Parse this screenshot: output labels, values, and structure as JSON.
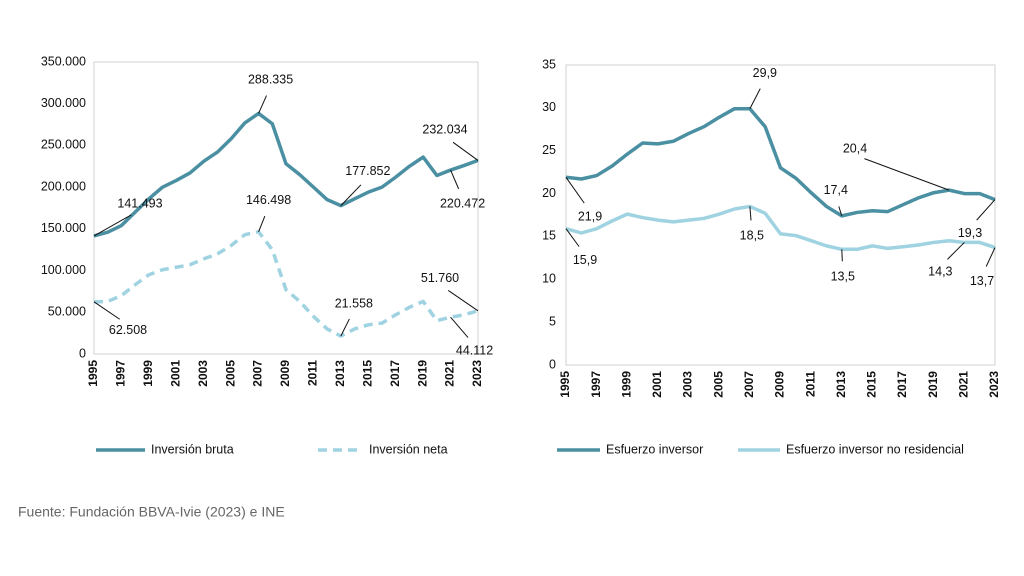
{
  "chart_data": [
    {
      "type": "line",
      "x": [
        1995,
        1996,
        1997,
        1998,
        1999,
        2000,
        2001,
        2002,
        2003,
        2004,
        2005,
        2006,
        2007,
        2008,
        2009,
        2010,
        2011,
        2012,
        2013,
        2014,
        2015,
        2016,
        2017,
        2018,
        2019,
        2020,
        2021,
        2022,
        2023
      ],
      "xlim": [
        1995,
        2023
      ],
      "xticks": [
        1995,
        1997,
        1999,
        2001,
        2003,
        2005,
        2007,
        2009,
        2011,
        2013,
        2015,
        2017,
        2019,
        2021,
        2023
      ],
      "ylim": [
        0,
        350000
      ],
      "yticks": [
        0,
        {
          "value": 50000,
          "label": "50.000"
        },
        {
          "value": 100000,
          "label": "100.000"
        },
        {
          "value": 150000,
          "label": "150.000"
        },
        {
          "value": 200000,
          "label": "200.000"
        },
        {
          "value": 250000,
          "label": "250.000"
        },
        {
          "value": 300000,
          "label": "300.000"
        },
        {
          "value": 350000,
          "label": "350.000"
        }
      ],
      "grid": false,
      "series": [
        {
          "name": "Inversión bruta",
          "color": "#4a8fa2",
          "dashed": false,
          "values": [
            141493,
            146000,
            154000,
            170000,
            186000,
            200000,
            208000,
            217000,
            231000,
            242000,
            258000,
            277000,
            288335,
            276000,
            228000,
            215000,
            200000,
            185000,
            177852,
            186000,
            194000,
            200000,
            212000,
            225000,
            236000,
            214000,
            220472,
            226000,
            232034
          ],
          "value_labels": [
            "141.493",
            null,
            null,
            null,
            null,
            null,
            null,
            null,
            null,
            null,
            null,
            null,
            "288.335",
            null,
            null,
            null,
            null,
            null,
            "177.852",
            null,
            null,
            null,
            null,
            null,
            null,
            null,
            "220.472",
            null,
            "232.034"
          ]
        },
        {
          "name": "Inversión neta",
          "color": "#9fd3e1",
          "dashed": true,
          "values": [
            62508,
            63000,
            70000,
            83000,
            95000,
            101000,
            104000,
            107000,
            114000,
            120000,
            130000,
            143000,
            146498,
            125000,
            77000,
            63000,
            45000,
            30000,
            21558,
            30000,
            35000,
            37000,
            47000,
            56000,
            63000,
            40000,
            44112,
            47000,
            51760
          ],
          "value_labels": [
            "62.508",
            null,
            null,
            null,
            null,
            null,
            null,
            null,
            null,
            null,
            null,
            null,
            "146.498",
            null,
            null,
            null,
            null,
            null,
            "21.558",
            null,
            null,
            null,
            null,
            null,
            null,
            null,
            "44.112",
            null,
            "51.760"
          ]
        }
      ]
    },
    {
      "type": "line",
      "x": [
        1995,
        1996,
        1997,
        1998,
        1999,
        2000,
        2001,
        2002,
        2003,
        2004,
        2005,
        2006,
        2007,
        2008,
        2009,
        2010,
        2011,
        2012,
        2013,
        2014,
        2015,
        2016,
        2017,
        2018,
        2019,
        2020,
        2021,
        2022,
        2023
      ],
      "xlim": [
        1995,
        2023
      ],
      "xticks": [
        1995,
        1997,
        1999,
        2001,
        2003,
        2005,
        2007,
        2009,
        2011,
        2013,
        2015,
        2017,
        2019,
        2021,
        2023
      ],
      "ylim": [
        0,
        35
      ],
      "yticks": [
        0,
        5,
        10,
        15,
        20,
        25,
        30,
        35
      ],
      "grid": false,
      "series": [
        {
          "name": "Esfuerzo inversor",
          "color": "#4a8fa2",
          "dashed": false,
          "values": [
            21.9,
            21.7,
            22.1,
            23.2,
            24.6,
            25.9,
            25.8,
            26.1,
            27.0,
            27.8,
            28.9,
            29.9,
            29.9,
            27.8,
            23.0,
            21.8,
            20.1,
            18.5,
            17.4,
            17.8,
            18.0,
            17.9,
            18.7,
            19.5,
            20.1,
            20.4,
            20.0,
            20.0,
            19.3
          ],
          "value_labels": [
            "21,9",
            null,
            null,
            null,
            null,
            null,
            null,
            null,
            null,
            null,
            null,
            null,
            "29,9",
            null,
            null,
            null,
            null,
            null,
            "17,4",
            null,
            null,
            null,
            null,
            null,
            null,
            "20,4",
            null,
            null,
            "19,3"
          ]
        },
        {
          "name": "Esfuerzo inversor no residencial",
          "color": "#9fd3e1",
          "dashed": false,
          "values": [
            15.9,
            15.4,
            15.9,
            16.8,
            17.6,
            17.2,
            16.9,
            16.7,
            16.9,
            17.1,
            17.6,
            18.2,
            18.5,
            17.7,
            15.3,
            15.1,
            14.5,
            13.9,
            13.5,
            13.5,
            13.9,
            13.6,
            13.8,
            14.0,
            14.3,
            14.5,
            14.3,
            14.3,
            13.7
          ],
          "value_labels": [
            "15,9",
            null,
            null,
            null,
            null,
            null,
            null,
            null,
            null,
            null,
            null,
            null,
            "18,5",
            null,
            null,
            null,
            null,
            null,
            "13,5",
            null,
            null,
            null,
            null,
            null,
            null,
            null,
            "14,3",
            null,
            "13,7"
          ]
        }
      ]
    }
  ],
  "source": "Fuente: Fundación BBVA-Ivie (2023) e INE"
}
